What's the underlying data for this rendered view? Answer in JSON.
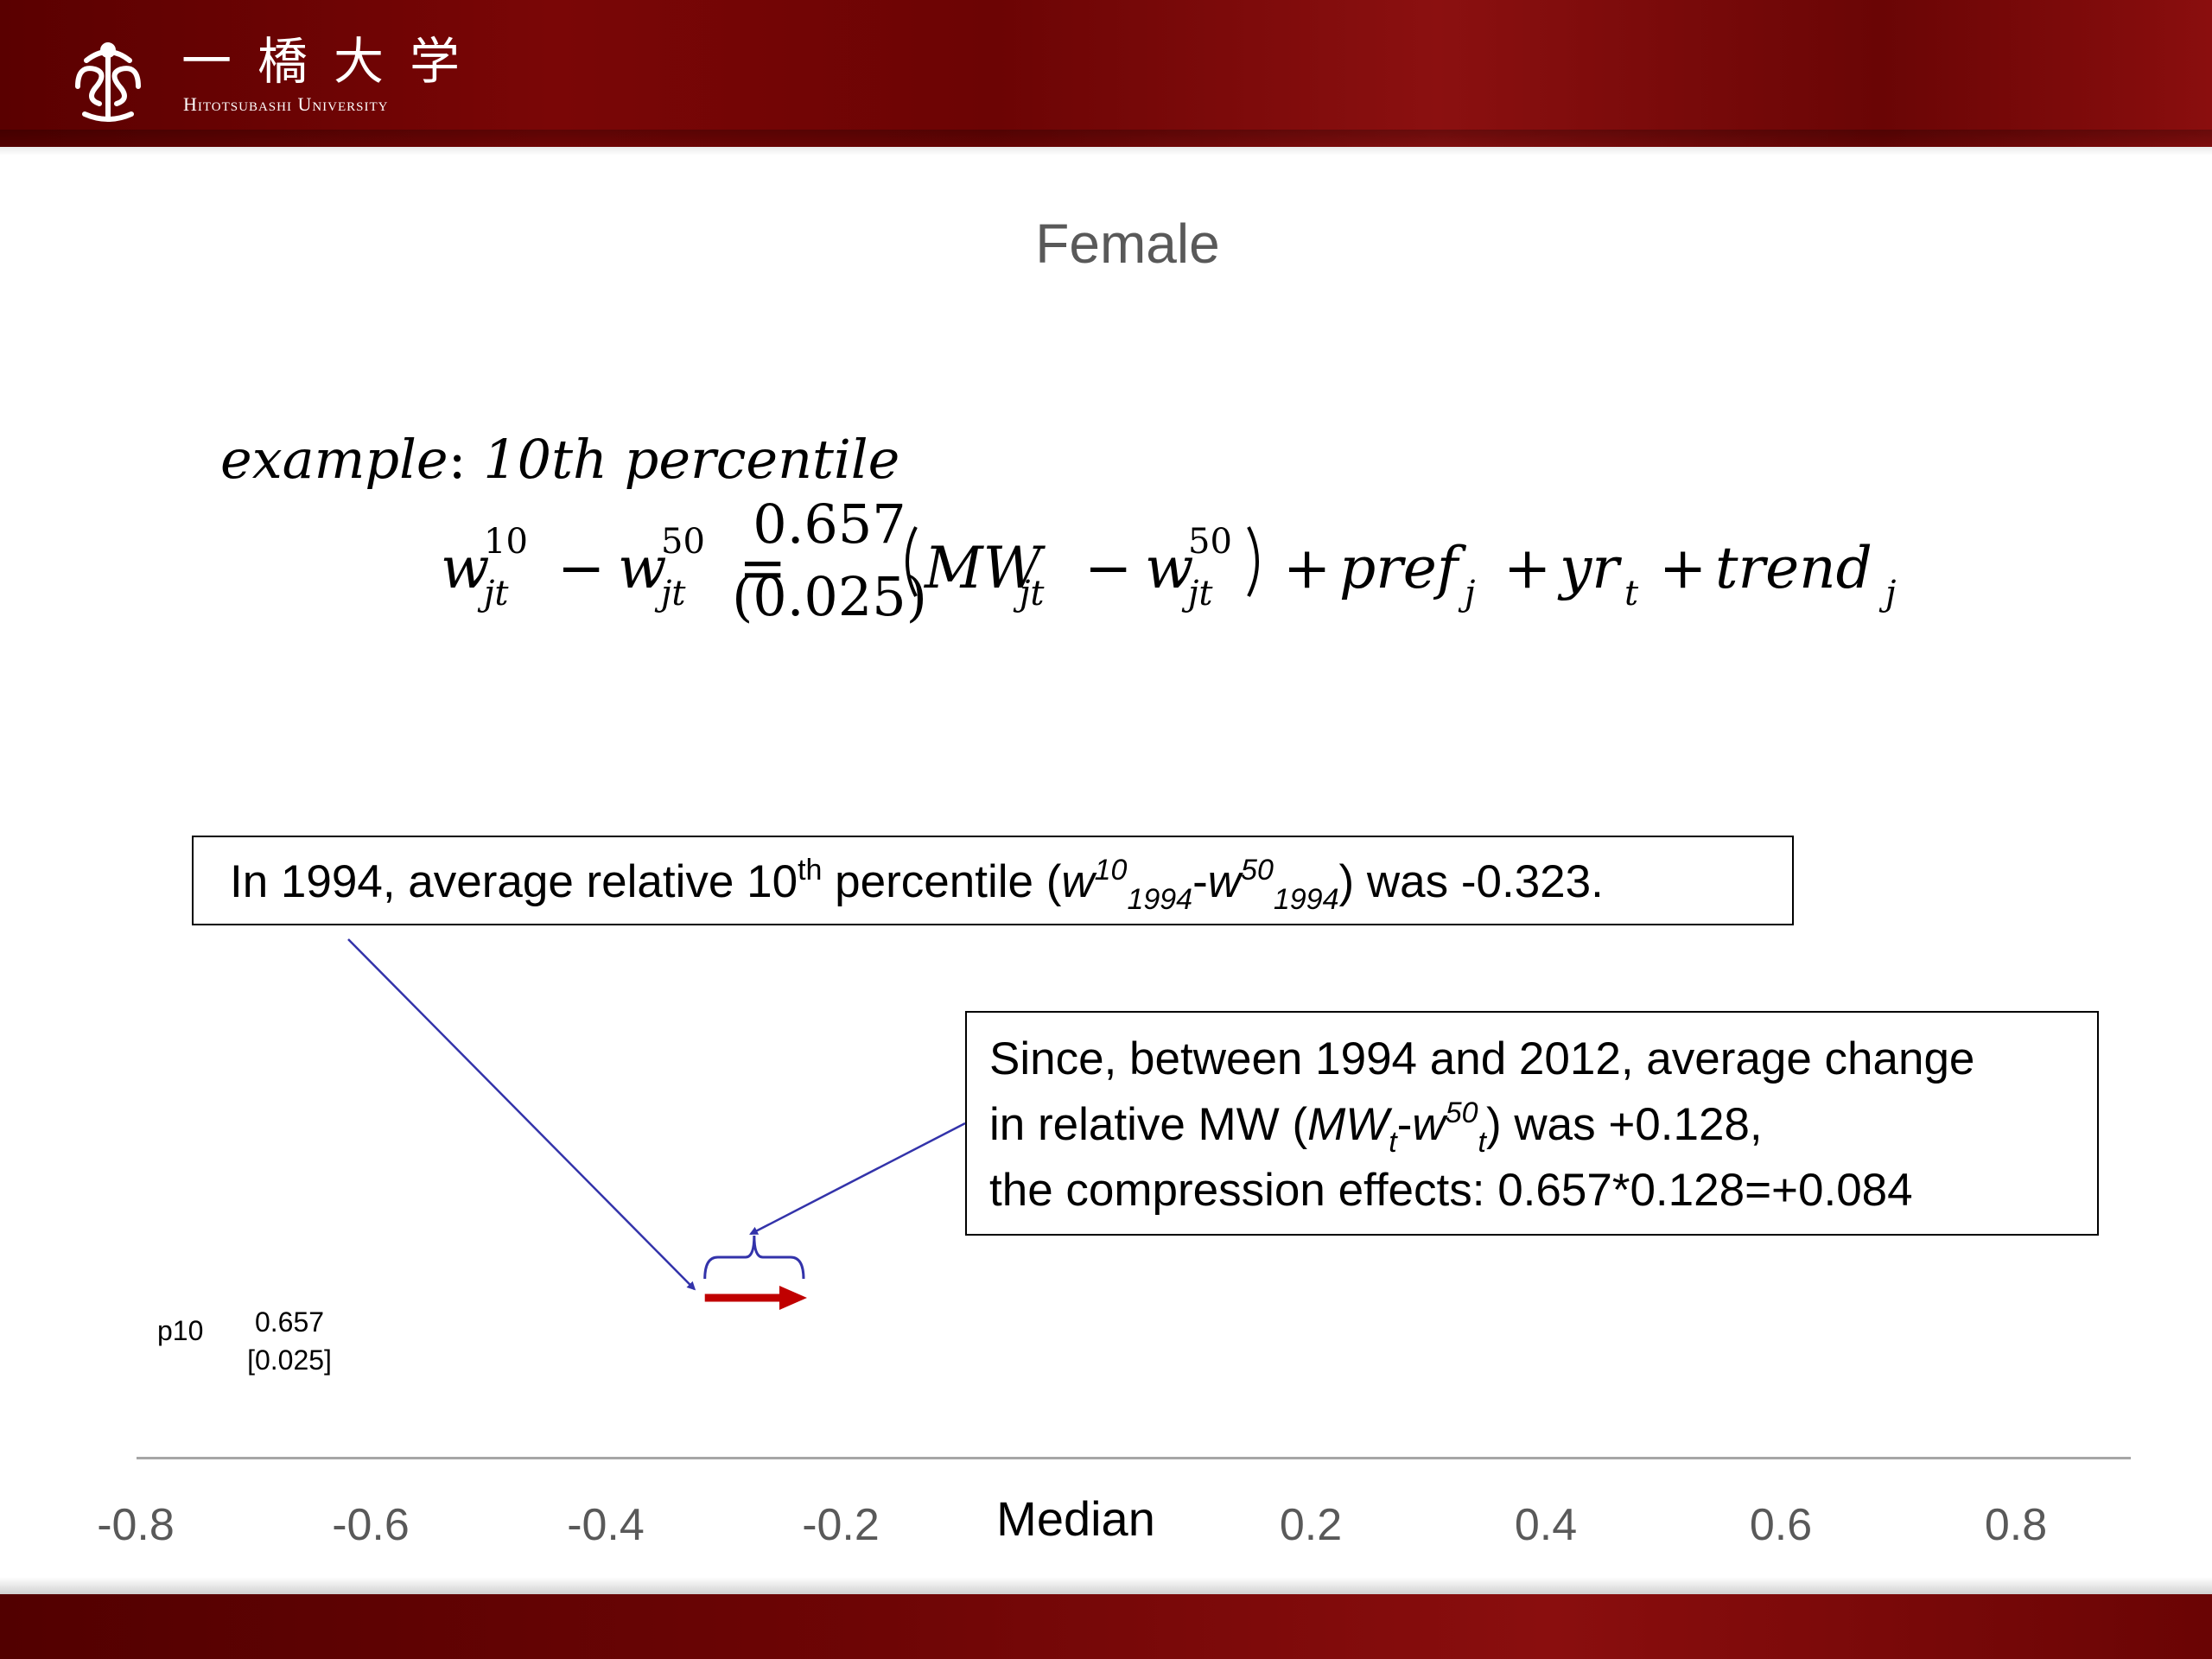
{
  "header": {
    "logo_kanji": "一橋大学",
    "logo_english": "Hitotsubashi University",
    "logo_mark": "hitotsubashi-emblem-icon"
  },
  "slide": {
    "title": "Female",
    "equation": {
      "example_label": "example",
      "example_colon": ": ",
      "example_rest": "10th percentile",
      "lhs_w": "w",
      "sup_10": "10",
      "sup_50": "50",
      "sub_jt": "jt",
      "minus": "−",
      "equals": "=",
      "coef": "0.657",
      "se": "(0.025)",
      "mw": "MW",
      "pref": "pref",
      "sub_j": "j",
      "yr": "yr",
      "sub_t": "t",
      "trend": "trend",
      "plus": "+"
    },
    "callout1": {
      "pre": "In 1994, average relative 10",
      "th": "th",
      "mid": " percentile (",
      "w": "w",
      "s10": "10",
      "y1994": "1994",
      "dash": "-",
      "s50": "50",
      "post": ") was -0.323."
    },
    "callout2": {
      "line1": "Since, between 1994 and 2012, average change",
      "line2_pre": "in relative MW (",
      "mw": "MW",
      "t": "t",
      "dash": "-",
      "w": "w",
      "s50": "50",
      "line2_post": ") was +0.128,",
      "line3": "the compression effects: 0.657*0.128=+0.084"
    },
    "row": {
      "label": "p10",
      "coef": "0.657",
      "se": "[0.025]"
    },
    "axis": {
      "median_label": "Median",
      "ticks": [
        {
          "label": "-0.8",
          "value": -0.8
        },
        {
          "label": "-0.6",
          "value": -0.6
        },
        {
          "label": "-0.4",
          "value": -0.4
        },
        {
          "label": "-0.2",
          "value": -0.2
        },
        {
          "label": "0.2",
          "value": 0.2
        },
        {
          "label": "0.4",
          "value": 0.4
        },
        {
          "label": "0.6",
          "value": 0.6
        },
        {
          "label": "0.8",
          "value": 0.8
        }
      ]
    },
    "marks": {
      "start_value": -0.323,
      "change_value": 0.084,
      "arrow_color": "#c00000",
      "pointer_color": "#3333aa",
      "brace_color": "#3333aa"
    }
  }
}
